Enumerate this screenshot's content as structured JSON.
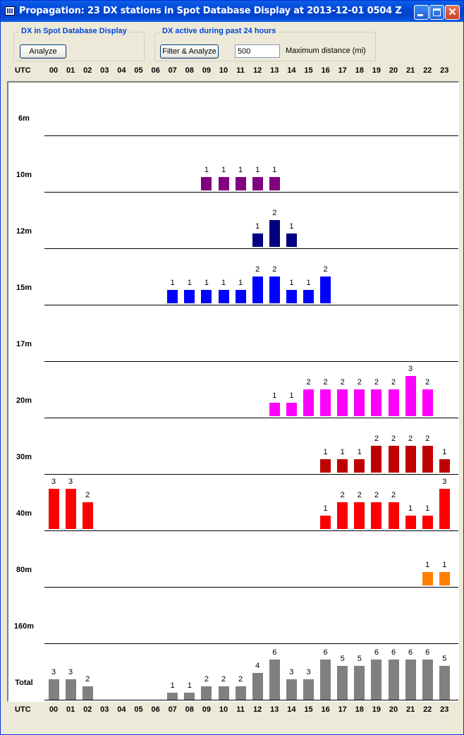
{
  "window": {
    "title": "Propagation: 23 DX stations in Spot Database Display at 2013-12-01 0504 Z"
  },
  "group_spot": {
    "title": "DX in Spot Database Display",
    "analyze_label": "Analyze"
  },
  "group_active": {
    "title": "DX active during past 24 hours",
    "filter_label": "Filter & Analyze",
    "distance_value": "500",
    "distance_label": "Maximum distance (mi)"
  },
  "utc_label": "UTC",
  "hours": [
    "00",
    "01",
    "02",
    "03",
    "04",
    "05",
    "06",
    "07",
    "08",
    "09",
    "10",
    "11",
    "12",
    "13",
    "14",
    "15",
    "16",
    "17",
    "18",
    "19",
    "20",
    "21",
    "22",
    "23"
  ],
  "chart_data": {
    "type": "bar",
    "x": [
      "00",
      "01",
      "02",
      "03",
      "04",
      "05",
      "06",
      "07",
      "08",
      "09",
      "10",
      "11",
      "12",
      "13",
      "14",
      "15",
      "16",
      "17",
      "18",
      "19",
      "20",
      "21",
      "22",
      "23"
    ],
    "xlabel": "UTC",
    "bands": [
      {
        "name": "6m",
        "color": "#800080",
        "values": [
          0,
          0,
          0,
          0,
          0,
          0,
          0,
          0,
          0,
          0,
          0,
          0,
          0,
          0,
          0,
          0,
          0,
          0,
          0,
          0,
          0,
          0,
          0,
          0
        ]
      },
      {
        "name": "10m",
        "color": "#800080",
        "values": [
          0,
          0,
          0,
          0,
          0,
          0,
          0,
          0,
          0,
          1,
          1,
          1,
          1,
          1,
          0,
          0,
          0,
          0,
          0,
          0,
          0,
          0,
          0,
          0
        ]
      },
      {
        "name": "12m",
        "color": "#000080",
        "values": [
          0,
          0,
          0,
          0,
          0,
          0,
          0,
          0,
          0,
          0,
          0,
          0,
          1,
          2,
          1,
          0,
          0,
          0,
          0,
          0,
          0,
          0,
          0,
          0
        ]
      },
      {
        "name": "15m",
        "color": "#0000FF",
        "values": [
          0,
          0,
          0,
          0,
          0,
          0,
          0,
          1,
          1,
          1,
          1,
          1,
          2,
          2,
          1,
          1,
          2,
          0,
          0,
          0,
          0,
          0,
          0,
          0
        ]
      },
      {
        "name": "17m",
        "color": "#008080",
        "values": [
          0,
          0,
          0,
          0,
          0,
          0,
          0,
          0,
          0,
          0,
          0,
          0,
          0,
          0,
          0,
          0,
          0,
          0,
          0,
          0,
          0,
          0,
          0,
          0
        ]
      },
      {
        "name": "20m",
        "color": "#FF00FF",
        "values": [
          0,
          0,
          0,
          0,
          0,
          0,
          0,
          0,
          0,
          0,
          0,
          0,
          0,
          1,
          1,
          2,
          2,
          2,
          2,
          2,
          2,
          3,
          2,
          0
        ]
      },
      {
        "name": "30m",
        "color": "#C00000",
        "values": [
          0,
          0,
          0,
          0,
          0,
          0,
          0,
          0,
          0,
          0,
          0,
          0,
          0,
          0,
          0,
          0,
          1,
          1,
          1,
          2,
          2,
          2,
          2,
          1
        ]
      },
      {
        "name": "40m",
        "color": "#FF0000",
        "values": [
          3,
          3,
          2,
          0,
          0,
          0,
          0,
          0,
          0,
          0,
          0,
          0,
          0,
          0,
          0,
          0,
          1,
          2,
          2,
          2,
          2,
          1,
          1,
          3
        ]
      },
      {
        "name": "80m",
        "color": "#FF8000",
        "values": [
          0,
          0,
          0,
          0,
          0,
          0,
          0,
          0,
          0,
          0,
          0,
          0,
          0,
          0,
          0,
          0,
          0,
          0,
          0,
          0,
          0,
          0,
          1,
          1
        ]
      },
      {
        "name": "160m",
        "color": "#808000",
        "values": [
          0,
          0,
          0,
          0,
          0,
          0,
          0,
          0,
          0,
          0,
          0,
          0,
          0,
          0,
          0,
          0,
          0,
          0,
          0,
          0,
          0,
          0,
          0,
          0
        ]
      },
      {
        "name": "Total",
        "color": "#808080",
        "values": [
          3,
          3,
          2,
          0,
          0,
          0,
          0,
          1,
          1,
          2,
          2,
          2,
          4,
          6,
          3,
          3,
          6,
          5,
          5,
          6,
          6,
          6,
          6,
          5
        ]
      }
    ]
  }
}
